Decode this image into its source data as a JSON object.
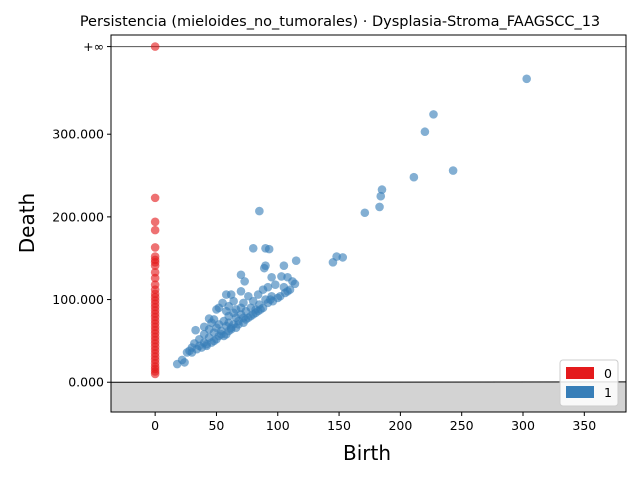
{
  "chart_data": {
    "type": "scatter",
    "title": "Persistencia (mieloides_no_tumorales) · Dysplasia-Stroma_FAAGSCC_13",
    "xlabel": "Birth",
    "ylabel": "Death",
    "xlim": [
      -36,
      384
    ],
    "ylim": [
      -36000,
      420000
    ],
    "x_ticks": [
      0,
      50,
      100,
      150,
      200,
      250,
      300,
      350
    ],
    "x_tick_labels": [
      "0",
      "50",
      "100",
      "150",
      "200",
      "250",
      "300",
      "350"
    ],
    "y_ticks": [
      0,
      100000,
      200000,
      300000
    ],
    "y_tick_labels": [
      "0.000",
      "100.000",
      "200.000",
      "300.000"
    ],
    "infinity_value": 406000,
    "infinity_label": "+∞",
    "legend_position": "lower-right",
    "diagonal": true,
    "series": [
      {
        "name": "0",
        "color": "#e41a1c",
        "points": [
          [
            0,
            406000
          ],
          [
            0,
            223000
          ],
          [
            0,
            194000
          ],
          [
            0,
            184000
          ],
          [
            0,
            163000
          ],
          [
            0,
            152000
          ],
          [
            0,
            148000
          ],
          [
            0,
            145000
          ],
          [
            0,
            141000
          ],
          [
            0,
            133000
          ],
          [
            0,
            126000
          ],
          [
            0,
            118000
          ],
          [
            0,
            112000
          ],
          [
            0,
            107000
          ],
          [
            0,
            103000
          ],
          [
            0,
            99000
          ],
          [
            0,
            95000
          ],
          [
            0,
            91000
          ],
          [
            0,
            87000
          ],
          [
            0,
            83000
          ],
          [
            0,
            79000
          ],
          [
            0,
            75000
          ],
          [
            0,
            71000
          ],
          [
            0,
            67000
          ],
          [
            0,
            63000
          ],
          [
            0,
            59000
          ],
          [
            0,
            55000
          ],
          [
            0,
            51000
          ],
          [
            0,
            47000
          ],
          [
            0,
            43000
          ],
          [
            0,
            39000
          ],
          [
            0,
            35000
          ],
          [
            0,
            31000
          ],
          [
            0,
            27000
          ],
          [
            0,
            23000
          ],
          [
            0,
            19000
          ],
          [
            0,
            16000
          ],
          [
            0,
            13000
          ],
          [
            0,
            10000
          ]
        ]
      },
      {
        "name": "1",
        "color": "#377eb8",
        "points": [
          [
            303,
            367000
          ],
          [
            227,
            324000
          ],
          [
            220,
            303000
          ],
          [
            243,
            256000
          ],
          [
            211,
            248000
          ],
          [
            185,
            233000
          ],
          [
            184,
            225000
          ],
          [
            183,
            212000
          ],
          [
            171,
            205000
          ],
          [
            85,
            207000
          ],
          [
            80,
            162000
          ],
          [
            90,
            162000
          ],
          [
            93,
            161000
          ],
          [
            148,
            152000
          ],
          [
            153,
            151000
          ],
          [
            145,
            145000
          ],
          [
            115,
            147000
          ],
          [
            89,
            138000
          ],
          [
            105,
            141000
          ],
          [
            70,
            130000
          ],
          [
            90,
            141000
          ],
          [
            95,
            127000
          ],
          [
            103,
            128000
          ],
          [
            73,
            122000
          ],
          [
            108,
            127000
          ],
          [
            112,
            122000
          ],
          [
            114,
            119000
          ],
          [
            98,
            118000
          ],
          [
            92,
            115000
          ],
          [
            105,
            115000
          ],
          [
            88,
            112000
          ],
          [
            108,
            110000
          ],
          [
            70,
            110000
          ],
          [
            62,
            106000
          ],
          [
            76,
            104000
          ],
          [
            58,
            106000
          ],
          [
            84,
            106000
          ],
          [
            95,
            104000
          ],
          [
            64,
            98000
          ],
          [
            55,
            96000
          ],
          [
            72,
            96000
          ],
          [
            80,
            98000
          ],
          [
            100,
            102000
          ],
          [
            90,
            100000
          ],
          [
            60,
            92000
          ],
          [
            70,
            90000
          ],
          [
            85,
            94000
          ],
          [
            50,
            88000
          ],
          [
            52,
            90000
          ],
          [
            66,
            88000
          ],
          [
            78,
            90000
          ],
          [
            44,
            77000
          ],
          [
            58,
            86000
          ],
          [
            74,
            86000
          ],
          [
            82,
            88000
          ],
          [
            48,
            76000
          ],
          [
            60,
            80000
          ],
          [
            64,
            84000
          ],
          [
            70,
            82000
          ],
          [
            46,
            72000
          ],
          [
            56,
            74000
          ],
          [
            66,
            78000
          ],
          [
            72,
            78000
          ],
          [
            40,
            67000
          ],
          [
            52,
            70000
          ],
          [
            60,
            72000
          ],
          [
            68,
            74000
          ],
          [
            33,
            63000
          ],
          [
            44,
            64000
          ],
          [
            50,
            66000
          ],
          [
            58,
            68000
          ],
          [
            64,
            70000
          ],
          [
            40,
            58000
          ],
          [
            48,
            60000
          ],
          [
            54,
            62000
          ],
          [
            62,
            64000
          ],
          [
            36,
            52000
          ],
          [
            44,
            54000
          ],
          [
            52,
            56000
          ],
          [
            58,
            58000
          ],
          [
            32,
            47000
          ],
          [
            40,
            48000
          ],
          [
            48,
            50000
          ],
          [
            30,
            42000
          ],
          [
            36,
            44000
          ],
          [
            42,
            46000
          ],
          [
            28,
            38000
          ],
          [
            34,
            40000
          ],
          [
            26,
            36000
          ],
          [
            30,
            36000
          ],
          [
            22,
            27000
          ],
          [
            18,
            22000
          ],
          [
            24,
            24000
          ],
          [
            46,
            48000
          ],
          [
            50,
            52000
          ],
          [
            56,
            56000
          ],
          [
            60,
            62000
          ],
          [
            66,
            66000
          ],
          [
            72,
            72000
          ],
          [
            76,
            78000
          ],
          [
            80,
            82000
          ],
          [
            86,
            88000
          ],
          [
            92,
            96000
          ],
          [
            96,
            98000
          ],
          [
            102,
            104000
          ],
          [
            106,
            108000
          ],
          [
            110,
            112000
          ],
          [
            68,
            70000
          ],
          [
            74,
            76000
          ],
          [
            84,
            86000
          ],
          [
            88,
            90000
          ],
          [
            38,
            42000
          ],
          [
            42,
            44000
          ],
          [
            54,
            58000
          ],
          [
            62,
            66000
          ],
          [
            94,
            100000
          ],
          [
            78,
            80000
          ],
          [
            82,
            84000
          ]
        ]
      }
    ]
  }
}
